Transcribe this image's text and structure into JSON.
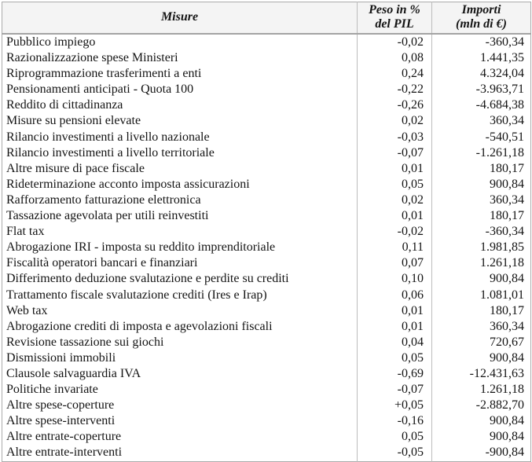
{
  "table": {
    "columns": [
      {
        "label": "Misure",
        "sub": ""
      },
      {
        "label": "Peso in %",
        "sub": "del PIL"
      },
      {
        "label": "Importi",
        "sub": "(mln di €)"
      }
    ],
    "rows": [
      {
        "misura": "Pubblico impiego",
        "peso": "-0,02",
        "importo": "-360,34"
      },
      {
        "misura": "Razionalizzazione spese Ministeri",
        "peso": "0,08",
        "importo": "1.441,35"
      },
      {
        "misura": "Riprogrammazione trasferimenti a enti",
        "peso": "0,24",
        "importo": "4.324,04"
      },
      {
        "misura": "Pensionamenti anticipati - Quota 100",
        "peso": "-0,22",
        "importo": "-3.963,71"
      },
      {
        "misura": "Reddito di cittadinanza",
        "peso": "-0,26",
        "importo": "-4.684,38"
      },
      {
        "misura": "Misure su pensioni elevate",
        "peso": "0,02",
        "importo": "360,34"
      },
      {
        "misura": "Rilancio investimenti a livello nazionale",
        "peso": "-0,03",
        "importo": "-540,51"
      },
      {
        "misura": "Rilancio investimenti a livello territoriale",
        "peso": "-0,07",
        "importo": "-1.261,18"
      },
      {
        "misura": "Altre misure di pace fiscale",
        "peso": "0,01",
        "importo": "180,17"
      },
      {
        "misura": "Rideterminazione acconto imposta assicurazioni",
        "peso": "0,05",
        "importo": "900,84"
      },
      {
        "misura": "Rafforzamento fatturazione elettronica",
        "peso": "0,02",
        "importo": "360,34"
      },
      {
        "misura": "Tassazione agevolata per utili reinvestiti",
        "peso": "0,01",
        "importo": "180,17"
      },
      {
        "misura": "Flat tax",
        "peso": "-0,02",
        "importo": "-360,34"
      },
      {
        "misura": "Abrogazione IRI - imposta su reddito imprenditoriale",
        "peso": "0,11",
        "importo": "1.981,85"
      },
      {
        "misura": "Fiscalità operatori bancari e finanziari",
        "peso": "0,07",
        "importo": "1.261,18"
      },
      {
        "misura": "Differimento deduzione svalutazione e perdite su crediti",
        "peso": "0,10",
        "importo": "900,84"
      },
      {
        "misura": "Trattamento fiscale svalutazione crediti (Ires e Irap)",
        "peso": "0,06",
        "importo": "1.081,01"
      },
      {
        "misura": "Web tax",
        "peso": "0,01",
        "importo": "180,17"
      },
      {
        "misura": "Abrogazione crediti di imposta e agevolazioni fiscali",
        "peso": "0,01",
        "importo": "360,34"
      },
      {
        "misura": "Revisione tassazione sui giochi",
        "peso": "0,04",
        "importo": "720,67"
      },
      {
        "misura": "Dismissioni immobili",
        "peso": "0,05",
        "importo": "900,84"
      },
      {
        "misura": "Clausole salvaguardia IVA",
        "peso": "-0,69",
        "importo": "-12.431,63"
      },
      {
        "misura": "Politiche invariate",
        "peso": "-0,07",
        "importo": "1.261,18"
      },
      {
        "misura": "Altre spese-coperture",
        "peso": "+0,05",
        "importo": "-2.882,70"
      },
      {
        "misura": "Altre spese-interventi",
        "peso": "-0,16",
        "importo": "900,84"
      },
      {
        "misura": "Altre entrate-coperture",
        "peso": "0,05",
        "importo": "900,84"
      },
      {
        "misura": "Altre entrate-interventi",
        "peso": "-0,05",
        "importo": "-900,84"
      }
    ]
  },
  "colors": {
    "header_bg": "#f4f4f4",
    "border": "#ababab",
    "grid_line": "#bcbcbc",
    "text": "#141414"
  },
  "chart_data": {
    "type": "table",
    "columns": [
      "Misure",
      "Peso in % del PIL",
      "Importi (mln di €)"
    ],
    "rows": [
      [
        "Pubblico impiego",
        "-0,02",
        "-360,34"
      ],
      [
        "Razionalizzazione spese Ministeri",
        "0,08",
        "1.441,35"
      ],
      [
        "Riprogrammazione trasferimenti a enti",
        "0,24",
        "4.324,04"
      ],
      [
        "Pensionamenti anticipati - Quota 100",
        "-0,22",
        "-3.963,71"
      ],
      [
        "Reddito di cittadinanza",
        "-0,26",
        "-4.684,38"
      ],
      [
        "Misure su pensioni elevate",
        "0,02",
        "360,34"
      ],
      [
        "Rilancio investimenti a livello nazionale",
        "-0,03",
        "-540,51"
      ],
      [
        "Rilancio investimenti a livello territoriale",
        "-0,07",
        "-1.261,18"
      ],
      [
        "Altre misure di pace fiscale",
        "0,01",
        "180,17"
      ],
      [
        "Rideterminazione acconto imposta assicurazioni",
        "0,05",
        "900,84"
      ],
      [
        "Rafforzamento fatturazione elettronica",
        "0,02",
        "360,34"
      ],
      [
        "Tassazione agevolata per utili reinvestiti",
        "0,01",
        "180,17"
      ],
      [
        "Flat tax",
        "-0,02",
        "-360,34"
      ],
      [
        "Abrogazione IRI - imposta su reddito imprenditoriale",
        "0,11",
        "1.981,85"
      ],
      [
        "Fiscalità operatori bancari e finanziari",
        "0,07",
        "1.261,18"
      ],
      [
        "Differimento deduzione svalutazione e perdite su crediti",
        "0,10",
        "900,84"
      ],
      [
        "Trattamento fiscale svalutazione crediti (Ires e Irap)",
        "0,06",
        "1.081,01"
      ],
      [
        "Web tax",
        "0,01",
        "180,17"
      ],
      [
        "Abrogazione crediti di imposta e agevolazioni fiscali",
        "0,01",
        "360,34"
      ],
      [
        "Revisione tassazione sui giochi",
        "0,04",
        "720,67"
      ],
      [
        "Dismissioni immobili",
        "0,05",
        "900,84"
      ],
      [
        "Clausole salvaguardia IVA",
        "-0,69",
        "-12.431,63"
      ],
      [
        "Politiche invariate",
        "-0,07",
        "1.261,18"
      ],
      [
        "Altre spese-coperture",
        "+0,05",
        "-2.882,70"
      ],
      [
        "Altre spese-interventi",
        "-0,16",
        "900,84"
      ],
      [
        "Altre entrate-coperture",
        "0,05",
        "900,84"
      ],
      [
        "Altre entrate-interventi",
        "-0,05",
        "-900,84"
      ]
    ]
  }
}
